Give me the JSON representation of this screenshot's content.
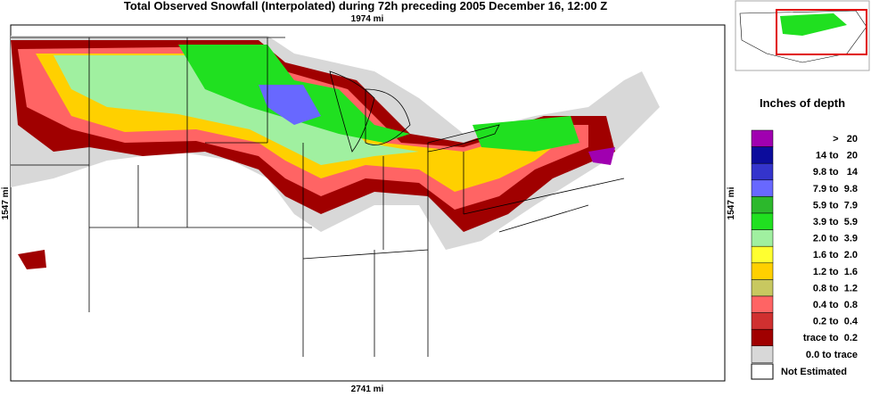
{
  "title": "Total Observed Snowfall (Interpolated) during 72h preceding 2005 December 16, 12:00 Z",
  "map": {
    "top_scale": "1974 mi",
    "bottom_scale": "2741 mi",
    "left_scale": "1547 mi",
    "right_scale": "1547 mi"
  },
  "legend": {
    "title": "Inches of depth",
    "items": [
      {
        "label": ">   20",
        "color": "#a000b0"
      },
      {
        "label": "14 to   20",
        "color": "#0c0c9c"
      },
      {
        "label": "9.8 to   14",
        "color": "#3434cc"
      },
      {
        "label": "7.9 to  9.8",
        "color": "#6868ff"
      },
      {
        "label": "5.9 to  7.9",
        "color": "#2cb82c"
      },
      {
        "label": "3.9 to  5.9",
        "color": "#20e020"
      },
      {
        "label": "2.0 to  3.9",
        "color": "#a0f0a0"
      },
      {
        "label": "1.6 to  2.0",
        "color": "#ffff30"
      },
      {
        "label": "1.2 to  1.6",
        "color": "#ffd000"
      },
      {
        "label": "0.8 to  1.2",
        "color": "#c8c860"
      },
      {
        "label": "0.4 to  0.8",
        "color": "#ff6464"
      },
      {
        "label": "0.2 to  0.4",
        "color": "#d03030"
      },
      {
        "label": "trace to  0.2",
        "color": "#a00000"
      },
      {
        "label": "0.0 to trace",
        "color": "#d8d8d8"
      }
    ],
    "not_estimated": "Not Estimated"
  }
}
